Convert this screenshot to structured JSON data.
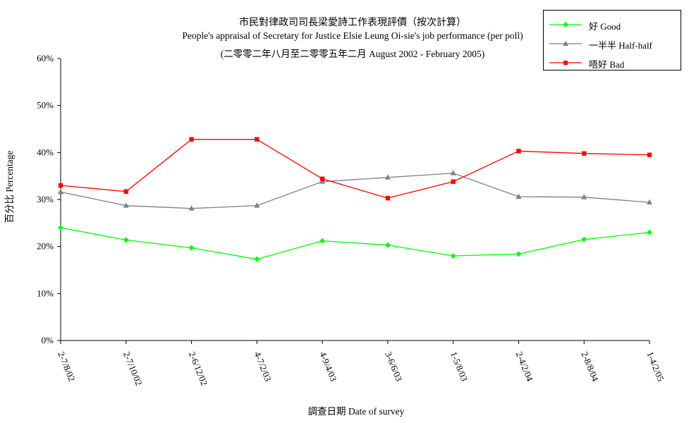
{
  "chart_data": {
    "type": "line",
    "title": "市民對律政司司長梁愛詩工作表現評價（按次計算）",
    "subtitle": "People's appraisal of Secretary for Justice Elsie Leung Oi-sie's job performance (per poll)",
    "subtitle2": "(二零零二年八月至二零零五年二月 August 2002 - February 2005)",
    "xlabel": "調查日期 Date of survey",
    "ylabel": "百分比 Percentage",
    "ylim": [
      0,
      60
    ],
    "y_ticks": [
      "0%",
      "10%",
      "20%",
      "30%",
      "40%",
      "50%",
      "60%"
    ],
    "categories": [
      "2-7/8/02",
      "2-7/10/02",
      "2-6/12/02",
      "4-7/2/03",
      "4-9/4/03",
      "3-6/6/03",
      "1-5/8/03",
      "2-4/2/04",
      "2-8/8/04",
      "1-4/2/05"
    ],
    "grid": false,
    "legend_position": "top-right",
    "series": [
      {
        "name": "好 Good",
        "color": "#00ff00",
        "marker": "diamond",
        "values": [
          24.0,
          21.4,
          19.7,
          17.3,
          21.2,
          20.3,
          18.0,
          18.4,
          21.5,
          23.0
        ]
      },
      {
        "name": "一半半 Half-half",
        "color": "#808080",
        "marker": "triangle",
        "values": [
          31.6,
          28.7,
          28.1,
          28.7,
          33.8,
          34.7,
          35.6,
          30.6,
          30.5,
          29.4
        ]
      },
      {
        "name": "唔好 Bad",
        "color": "#ff0000",
        "marker": "square",
        "values": [
          33.0,
          31.7,
          42.8,
          42.8,
          34.4,
          30.3,
          33.8,
          40.3,
          39.8,
          39.5
        ]
      }
    ]
  }
}
